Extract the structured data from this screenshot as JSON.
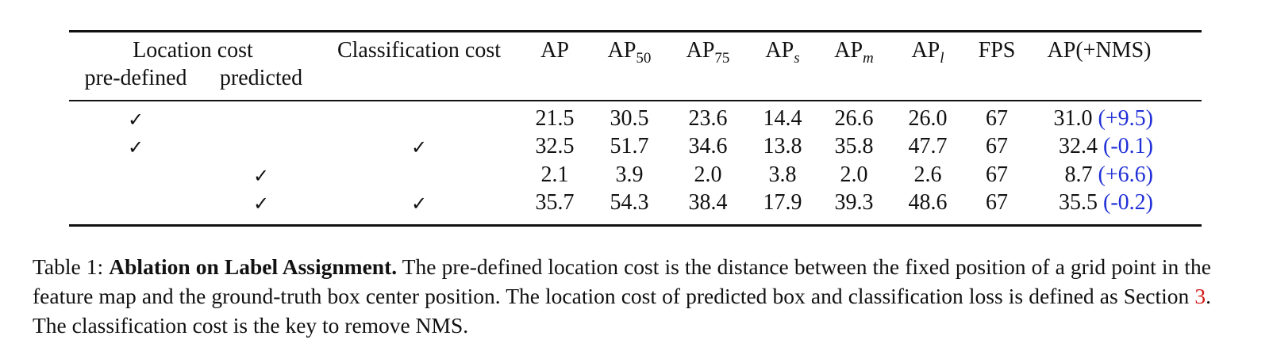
{
  "table": {
    "header": {
      "location_cost": "Location cost",
      "pre_defined": "pre-defined",
      "predicted": "predicted",
      "classification_cost": "Classification cost",
      "metrics": [
        {
          "base": "AP",
          "sub": ""
        },
        {
          "base": "AP",
          "sub": "50"
        },
        {
          "base": "AP",
          "sub": "75"
        },
        {
          "base": "AP",
          "sub": "s"
        },
        {
          "base": "AP",
          "sub": "m"
        },
        {
          "base": "AP",
          "sub": "l"
        },
        {
          "base": "FPS",
          "sub": ""
        },
        {
          "base": "AP(+NMS)",
          "sub": ""
        }
      ]
    },
    "check_mark": "✓",
    "rows": [
      {
        "pre_defined": true,
        "predicted": false,
        "classification": false,
        "ap": "21.5",
        "ap50": "30.5",
        "ap75": "23.6",
        "aps": "14.4",
        "apm": "26.6",
        "apl": "26.0",
        "fps": "67",
        "ap_nms": "31.0",
        "delta": "(+9.5)"
      },
      {
        "pre_defined": true,
        "predicted": false,
        "classification": true,
        "ap": "32.5",
        "ap50": "51.7",
        "ap75": "34.6",
        "aps": "13.8",
        "apm": "35.8",
        "apl": "47.7",
        "fps": "67",
        "ap_nms": "32.4",
        "delta": "(-0.1)"
      },
      {
        "pre_defined": false,
        "predicted": true,
        "classification": false,
        "ap": "2.1",
        "ap50": "3.9",
        "ap75": "2.0",
        "aps": "3.8",
        "apm": "2.0",
        "apl": "2.6",
        "fps": "67",
        "ap_nms": "8.7",
        "delta": "(+6.6)"
      },
      {
        "pre_defined": false,
        "predicted": true,
        "classification": true,
        "ap": "35.7",
        "ap50": "54.3",
        "ap75": "38.4",
        "aps": "17.9",
        "apm": "39.3",
        "apl": "48.6",
        "fps": "67",
        "ap_nms": "35.5",
        "delta": "(-0.2)"
      }
    ]
  },
  "caption": {
    "label": "Table 1:",
    "title": "Ablation on Label Assignment.",
    "text_part1": "The pre-defined location cost is the distance between the fixed position of a grid point in the feature map and the ground-truth box center position. The location cost of predicted box and classification loss is defined as Section",
    "ref": "3",
    "text_part2": ". The classification cost is the key to remove NMS."
  },
  "colors": {
    "delta": "#1f2fd6",
    "reference": "#d21a1a",
    "text": "#111111"
  }
}
